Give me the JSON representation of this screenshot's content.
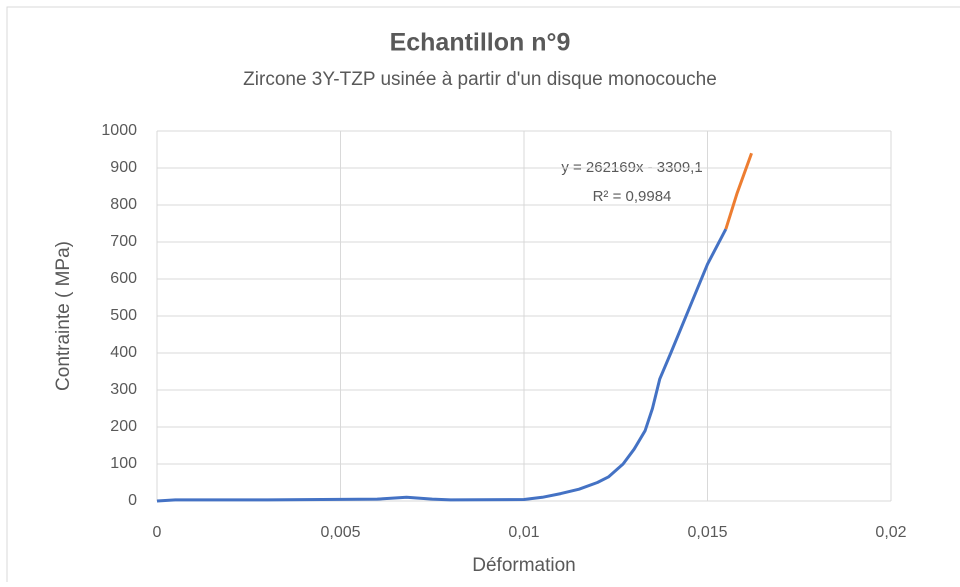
{
  "chart_data": {
    "type": "line",
    "title": "Echantillon n°9",
    "subtitle": "Zircone 3Y-TZP usinée à partir d'un disque monocouche",
    "xlabel": "Déformation",
    "ylabel": "Contrainte ( MPa)",
    "annotations": [
      "y = 262169x - 3309,1",
      "R² = 0,9984"
    ],
    "xlim": [
      0,
      0.02
    ],
    "xticks": [
      0,
      {
        "value": 0.005,
        "label": "0,005"
      },
      {
        "value": 0.01,
        "label": "0,01"
      },
      {
        "value": 0.015,
        "label": "0,015"
      },
      {
        "value": 0.02,
        "label": "0,02"
      }
    ],
    "ylim": [
      0,
      1000
    ],
    "yticks": [
      0,
      100,
      200,
      300,
      400,
      500,
      600,
      700,
      800,
      900,
      1000
    ],
    "grid": true,
    "series": [
      {
        "color": "#4472c4",
        "x": [
          0,
          0.0005,
          0.003,
          0.006,
          0.0068,
          0.0075,
          0.008,
          0.01,
          0.0105,
          0.011,
          0.0115,
          0.012,
          0.0123,
          0.0127,
          0.013,
          0.0133,
          0.0135,
          0.0137,
          0.014,
          0.0145,
          0.015,
          0.0155
        ],
        "values": [
          0,
          3,
          3,
          5,
          10,
          5,
          3,
          4,
          10,
          20,
          32,
          50,
          65,
          100,
          140,
          190,
          250,
          330,
          400,
          520,
          640,
          735
        ]
      },
      {
        "color": "#ed7d31",
        "x": [
          0.0155,
          0.0158,
          0.0162
        ],
        "values": [
          735,
          830,
          940
        ]
      }
    ]
  }
}
